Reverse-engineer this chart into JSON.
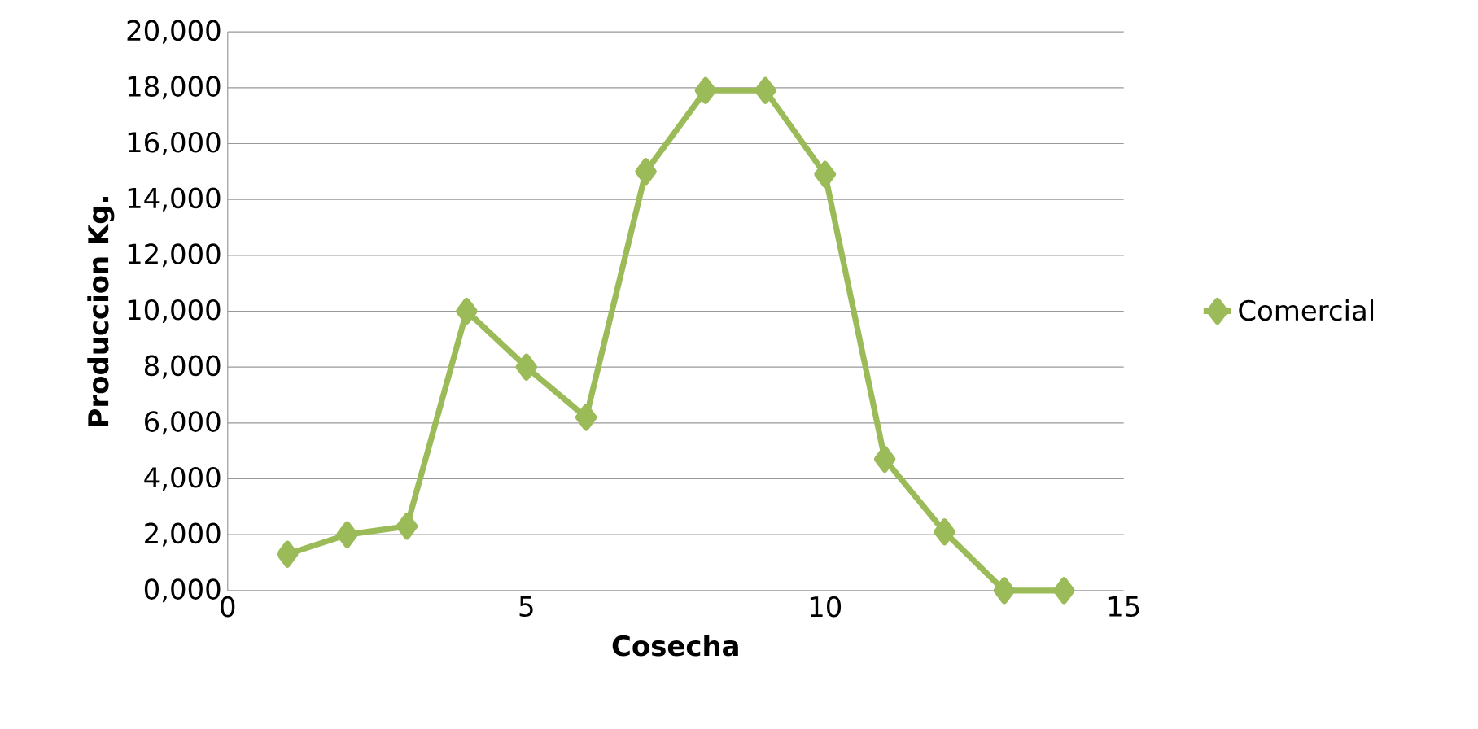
{
  "chart_data": {
    "type": "line",
    "xlabel": "Cosecha",
    "ylabel": "Produccion Kg.",
    "x": [
      1,
      2,
      3,
      4,
      5,
      6,
      7,
      8,
      9,
      10,
      11,
      12,
      13,
      14
    ],
    "series": [
      {
        "name": "Comercial",
        "color": "#9bbb59",
        "values": [
          1300,
          2000,
          2300,
          10000,
          8000,
          6200,
          15000,
          17900,
          17900,
          14900,
          4700,
          2100,
          0,
          0
        ]
      }
    ],
    "xlim": [
      0,
      15
    ],
    "xticks": [
      0,
      5,
      10,
      15
    ],
    "ylim": [
      0,
      20000
    ],
    "yticks": [
      {
        "value": 0,
        "label": "0,000"
      },
      {
        "value": 2000,
        "label": "2,000"
      },
      {
        "value": 4000,
        "label": "4,000"
      },
      {
        "value": 6000,
        "label": "6,000"
      },
      {
        "value": 8000,
        "label": "8,000"
      },
      {
        "value": 10000,
        "label": "10,000"
      },
      {
        "value": 12000,
        "label": "12,000"
      },
      {
        "value": 14000,
        "label": "14,000"
      },
      {
        "value": 16000,
        "label": "16,000"
      },
      {
        "value": 18000,
        "label": "18,000"
      },
      {
        "value": 20000,
        "label": "20,000"
      }
    ],
    "grid": "y",
    "legend": "right",
    "marker": "diamond",
    "line_style": "solid"
  }
}
